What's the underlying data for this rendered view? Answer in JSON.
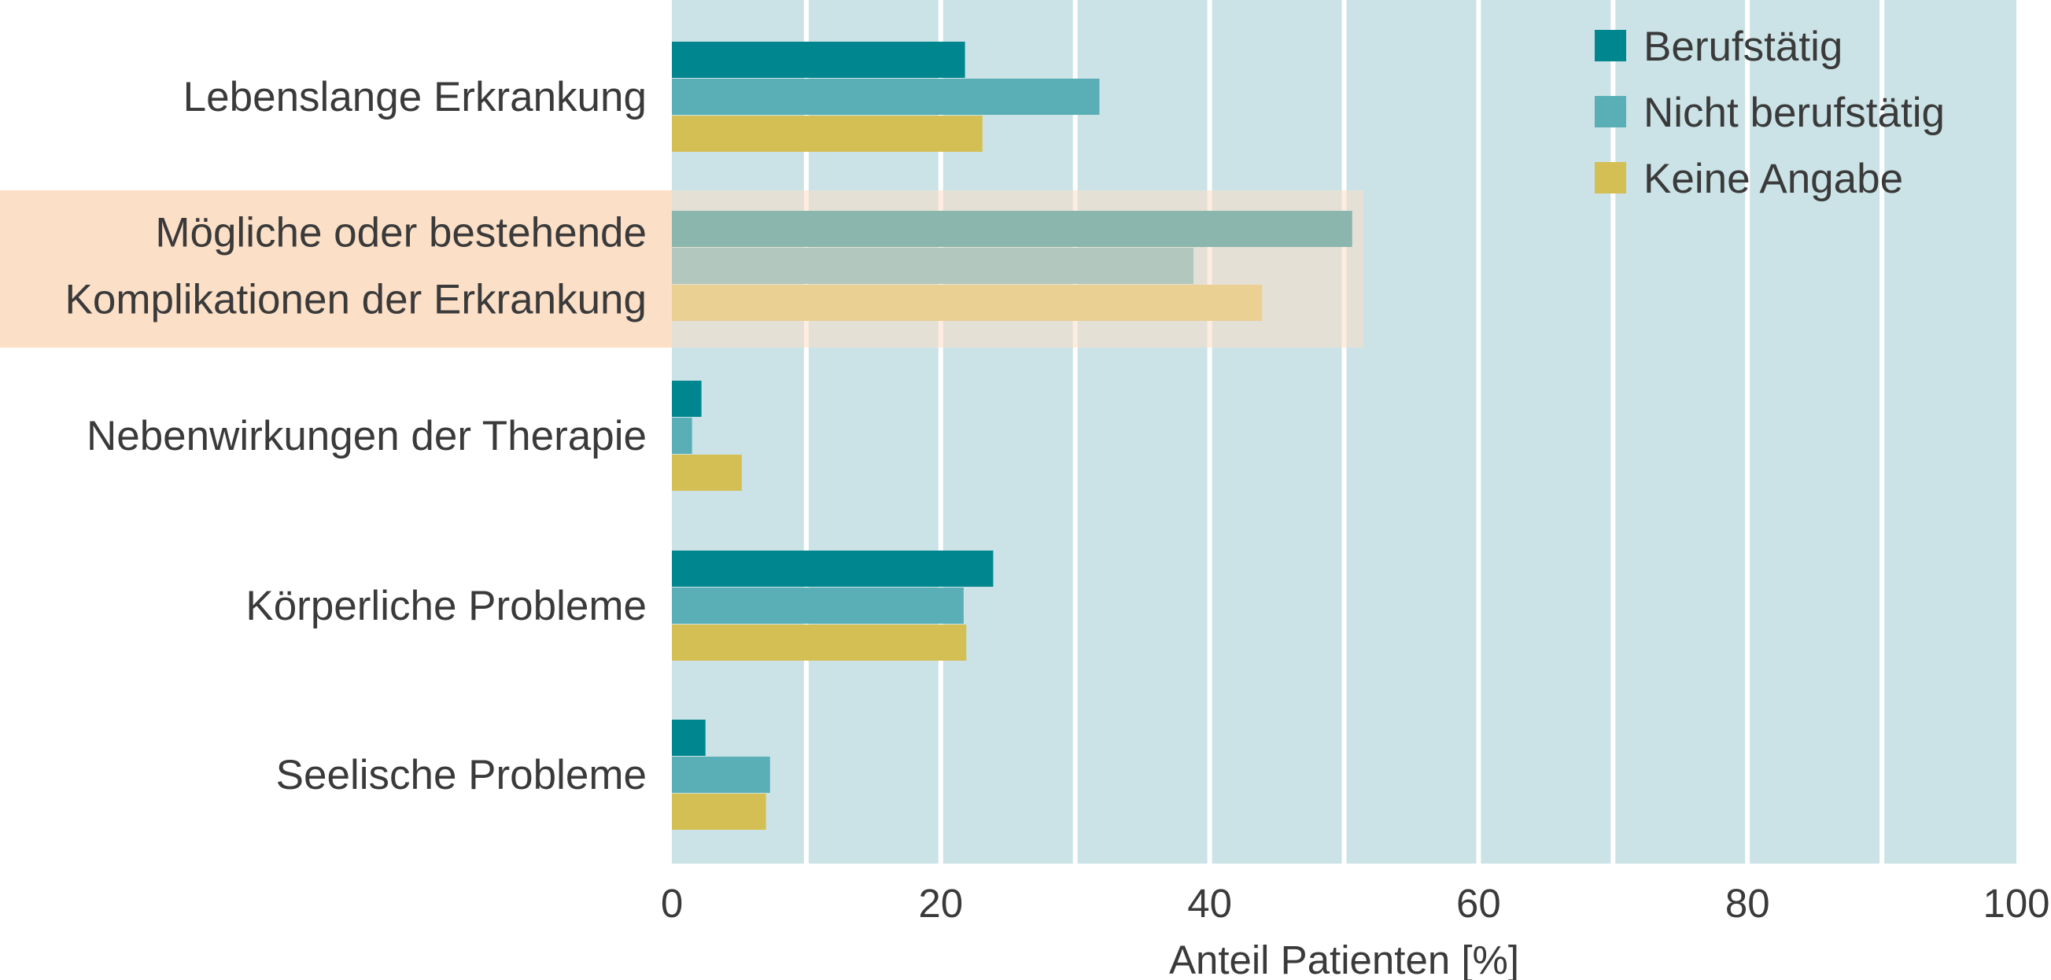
{
  "chart_data": {
    "type": "bar",
    "orientation": "horizontal",
    "categories": [
      [
        "Lebenslange Erkrankung"
      ],
      [
        "Mögliche oder bestehende",
        "Komplikationen der Erkrankung"
      ],
      [
        "Nebenwirkungen der Therapie"
      ],
      [
        "Körperliche Probleme"
      ],
      [
        "Seelische Probleme"
      ]
    ],
    "highlighted_category_index": 1,
    "series": [
      {
        "name": "Berufstätig",
        "color": "#00868f",
        "values": [
          21.8,
          50.6,
          2.2,
          23.9,
          2.5
        ]
      },
      {
        "name": "Nicht berufstätig",
        "color": "#5aaeb5",
        "values": [
          31.8,
          38.8,
          1.5,
          21.7,
          7.3
        ]
      },
      {
        "name": "Keine Angabe",
        "color": "#d4bf55",
        "values": [
          23.1,
          43.9,
          5.2,
          21.9,
          7.0
        ]
      }
    ],
    "xlabel": "Anteil Patienten [%]",
    "xlim": [
      0,
      100
    ],
    "xticks": [
      0,
      20,
      40,
      60,
      80,
      100
    ],
    "grid": true,
    "legend_position": "top-right",
    "colors": {
      "plot_background": "#cbe3e6",
      "gridline": "#ffffff",
      "highlight": "#fbdfc7"
    }
  }
}
